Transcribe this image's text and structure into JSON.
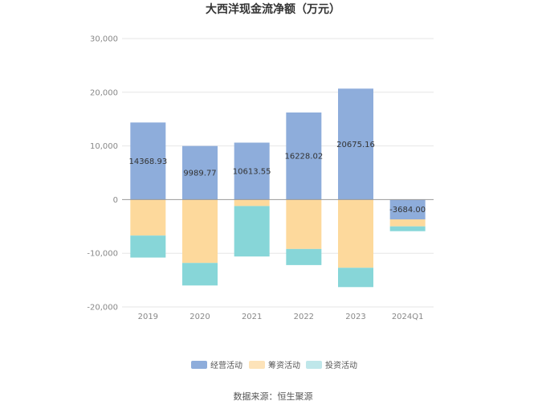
{
  "chart_data": {
    "type": "bar",
    "stacked": true,
    "title": "大西洋现金流净额（万元）",
    "categories": [
      "2019",
      "2020",
      "2021",
      "2022",
      "2023",
      "2024Q1"
    ],
    "series": [
      {
        "name": "经营活动",
        "color": "#8eaddb",
        "values": [
          14368.93,
          9989.77,
          10613.55,
          16228.02,
          20675.16,
          -3684.0
        ]
      },
      {
        "name": "筹资活动",
        "color": "#fdd99c",
        "values": [
          -6700,
          -11800,
          -1200,
          -9200,
          -12700,
          -1300
        ]
      },
      {
        "name": "投资活动",
        "color": "#87d6d8",
        "values": [
          -4100,
          -4200,
          -9400,
          -3000,
          -3600,
          -900
        ]
      }
    ],
    "data_labels": [
      "14368.93",
      "9989.77",
      "10613.55",
      "16228.02",
      "20675.16",
      "-3684.00"
    ],
    "yticks": [
      "30,000",
      "20,000",
      "10,000",
      "0",
      "-10,000",
      "-20,000"
    ],
    "ylim": [
      -20000,
      30000
    ],
    "grid": true,
    "legend_position": "bottom"
  },
  "source_text": "数据来源：恒生聚源"
}
